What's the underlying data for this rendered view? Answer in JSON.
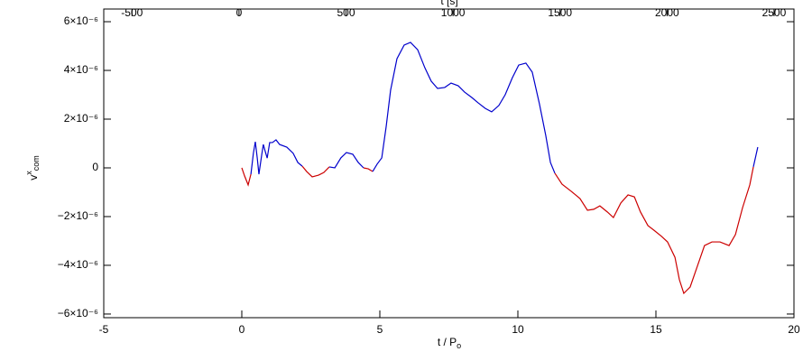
{
  "chart_data": {
    "type": "line",
    "xlabel": {
      "text": "t / P",
      "sub": "o"
    },
    "x2label": "t [s]",
    "ylabel": {
      "text": "v",
      "sup": "x",
      "sub": "com"
    },
    "xlim": [
      -5,
      20
    ],
    "xticks": [
      -5,
      0,
      5,
      10,
      15,
      20
    ],
    "x2lim": [
      -632,
      2593
    ],
    "x2ticks": [
      -500,
      0,
      500,
      1000,
      1500,
      2000,
      2500
    ],
    "ylim": [
      -6.15e-06,
      6.52e-06
    ],
    "yticks": [
      {
        "value": -6e-06,
        "label": "−6×10⁻⁶"
      },
      {
        "value": -4e-06,
        "label": "−4×10⁻⁶"
      },
      {
        "value": -2e-06,
        "label": "−2×10⁻⁶"
      },
      0,
      {
        "value": 2e-06,
        "label": "2×10⁻⁶"
      },
      {
        "value": 4e-06,
        "label": "4×10⁻⁶"
      },
      {
        "value": 6e-06,
        "label": "6×10⁻⁶"
      }
    ],
    "colors": {
      "positive": "#0000cc",
      "negative": "#cc0000"
    },
    "x": [
      0,
      0.1,
      0.23,
      0.33,
      0.42,
      0.49,
      0.56,
      0.62,
      0.72,
      0.78,
      0.85,
      0.92,
      1.01,
      1.11,
      1.24,
      1.37,
      1.63,
      1.86,
      2.03,
      2.19,
      2.35,
      2.55,
      2.78,
      2.97,
      3.17,
      3.37,
      3.59,
      3.79,
      4.02,
      4.22,
      4.41,
      4.58,
      4.74,
      4.9,
      5.07,
      5.23,
      5.39,
      5.62,
      5.88,
      6.11,
      6.37,
      6.63,
      6.86,
      7.09,
      7.35,
      7.58,
      7.84,
      8.07,
      8.33,
      8.56,
      8.82,
      9.05,
      9.31,
      9.54,
      9.8,
      10.03,
      10.29,
      10.52,
      10.78,
      11.01,
      11.18,
      11.34,
      11.6,
      11.93,
      12.25,
      12.52,
      12.75,
      12.97,
      13.24,
      13.46,
      13.73,
      13.99,
      14.22,
      14.44,
      14.71,
      14.93,
      15.2,
      15.42,
      15.69,
      15.85,
      16.01,
      16.24,
      16.5,
      16.76,
      17.03,
      17.32,
      17.65,
      17.88,
      18.14,
      18.4,
      18.53,
      18.69
    ],
    "values": [
      0,
      -3.3e-07,
      -7e-07,
      -2.6e-07,
      6e-07,
      1.07e-06,
      4e-07,
      -2.6e-07,
      5.2e-07,
      9.6e-07,
      6.7e-07,
      4e-07,
      1.04e-06,
      1.04e-06,
      1.15e-06,
      9.6e-07,
      8.5e-07,
      6e-07,
      2.2e-07,
      7e-08,
      -1.5e-07,
      -3.7e-07,
      -3e-07,
      -1.9e-07,
      4e-08,
      0,
      4.1e-07,
      6.3e-07,
      5.6e-07,
      2.2e-07,
      0,
      -4e-08,
      -1.5e-07,
      1.5e-07,
      4.1e-07,
      1.7e-06,
      3.19e-06,
      4.48e-06,
      5.04e-06,
      5.15e-06,
      4.85e-06,
      4.11e-06,
      3.56e-06,
      3.26e-06,
      3.3e-06,
      3.48e-06,
      3.37e-06,
      3.11e-06,
      2.89e-06,
      2.67e-06,
      2.44e-06,
      2.3e-06,
      2.56e-06,
      3e-06,
      3.7e-06,
      4.22e-06,
      4.3e-06,
      3.93e-06,
      2.63e-06,
      1.33e-06,
      2.2e-07,
      -2.2e-07,
      -6.7e-07,
      -9.6e-07,
      -1.26e-06,
      -1.74e-06,
      -1.7e-06,
      -1.56e-06,
      -1.81e-06,
      -2.04e-06,
      -1.44e-06,
      -1.11e-06,
      -1.19e-06,
      -1.81e-06,
      -2.37e-06,
      -2.56e-06,
      -2.81e-06,
      -3.04e-06,
      -3.67e-06,
      -4.59e-06,
      -5.15e-06,
      -4.89e-06,
      -4.04e-06,
      -3.19e-06,
      -3.04e-06,
      -3.04e-06,
      -3.19e-06,
      -2.74e-06,
      -1.63e-06,
      -7e-07,
      4e-08,
      8.5e-07
    ]
  }
}
